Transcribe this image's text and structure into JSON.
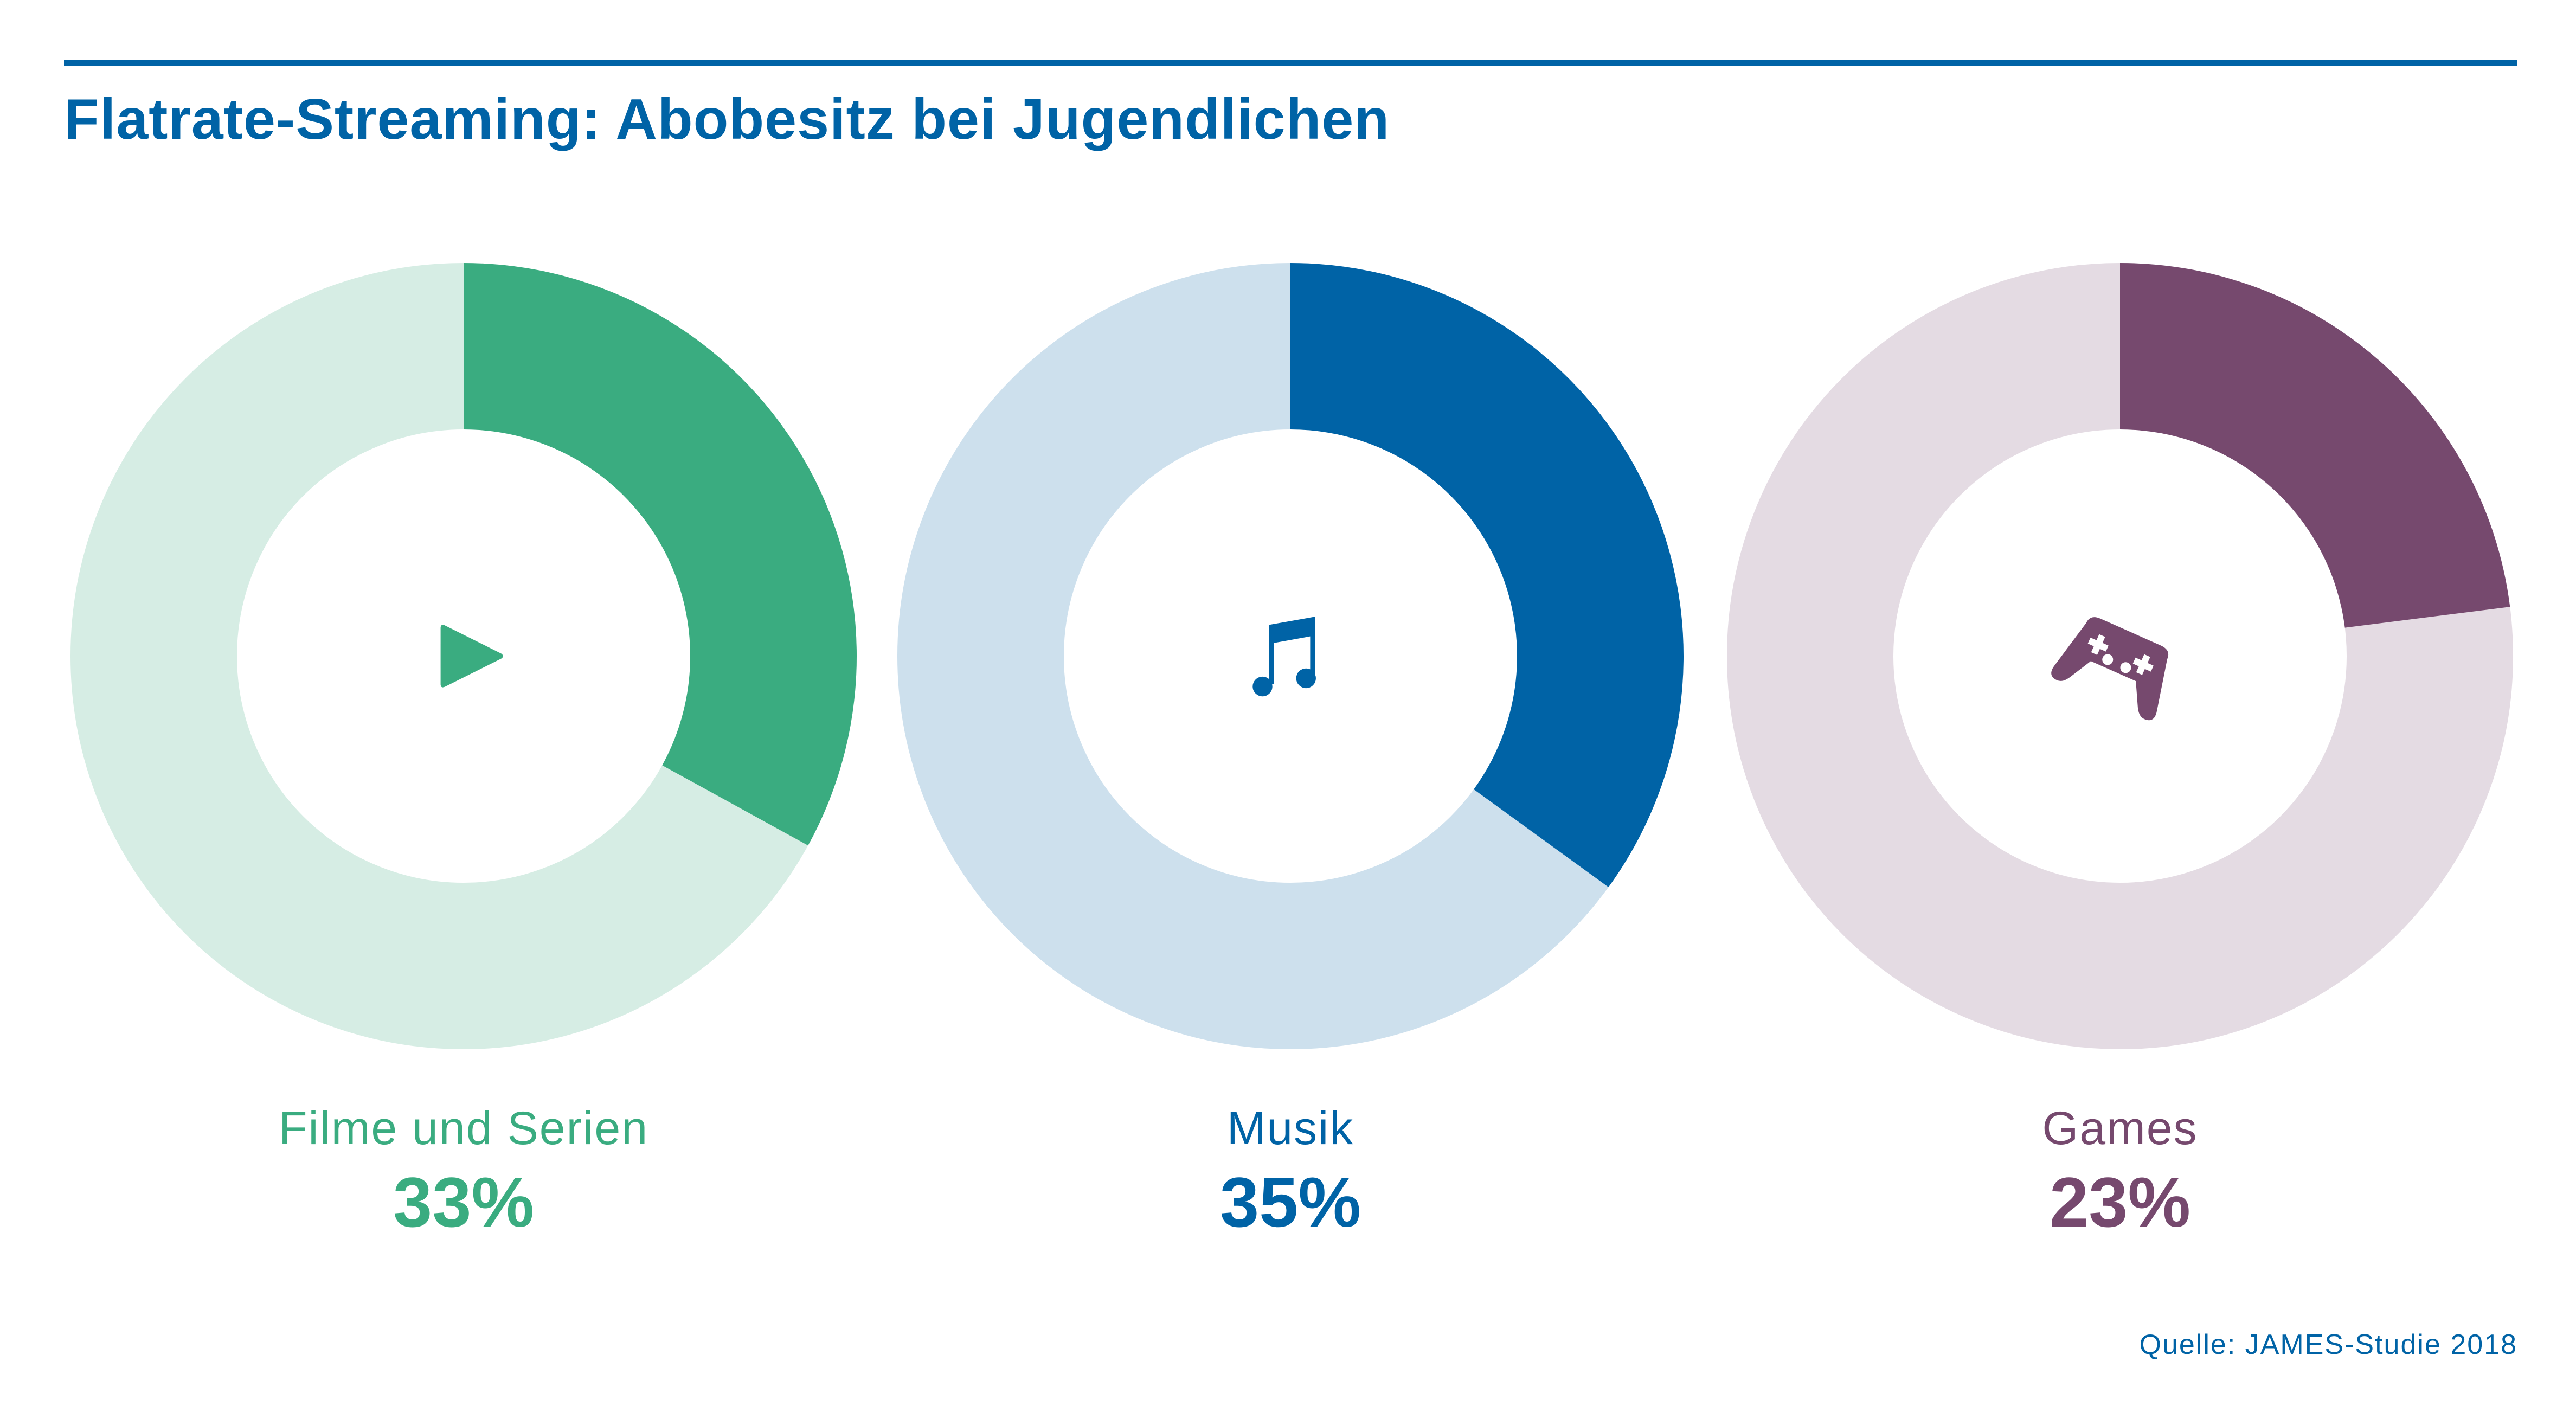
{
  "title": "Flatrate-Streaming: Abobesitz bei Jugendlichen",
  "source": "Quelle: JAMES-Studie 2018",
  "chart_data": [
    {
      "type": "pie",
      "variant": "donut",
      "name": "Filme und Serien",
      "value": 33,
      "value_label": "33%",
      "color": "#3aac80",
      "track_color": "#d6ede4",
      "icon": "play-icon"
    },
    {
      "type": "pie",
      "variant": "donut",
      "name": "Musik",
      "value": 35,
      "value_label": "35%",
      "color": "#0063a6",
      "track_color": "#cde0ed",
      "icon": "music-note-icon"
    },
    {
      "type": "pie",
      "variant": "donut",
      "name": "Games",
      "value": 23,
      "value_label": "23%",
      "color": "#76496e",
      "track_color": "#e4dbe3",
      "icon": "gamepad-icon"
    }
  ]
}
